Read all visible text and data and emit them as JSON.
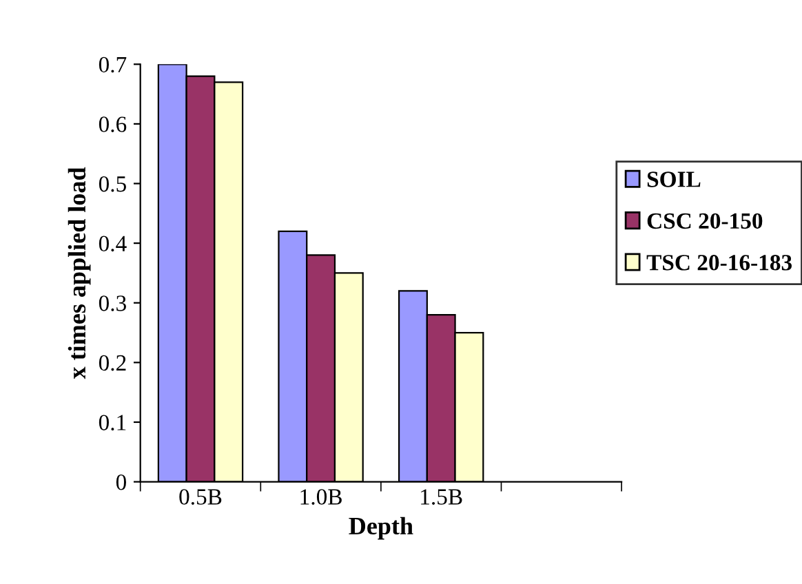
{
  "chart_data": {
    "type": "bar",
    "xlabel": "Depth",
    "ylabel": "x times applied load",
    "categories": [
      "0.5B",
      "1.0B",
      "1.5B",
      null
    ],
    "series": [
      {
        "name": "SOIL",
        "color": "#9999ff",
        "values": [
          0.7,
          0.42,
          0.32,
          null
        ]
      },
      {
        "name": "CSC 20-150",
        "color": "#993366",
        "values": [
          0.68,
          0.38,
          0.28,
          null
        ]
      },
      {
        "name": "TSC 20-16-183",
        "color": "#ffffcc",
        "values": [
          0.67,
          0.35,
          0.25,
          null
        ]
      }
    ],
    "ylim": [
      0,
      0.7
    ],
    "yticks": [
      0,
      0.1,
      0.2,
      0.3,
      0.4,
      0.5,
      0.6,
      0.7
    ],
    "grid": false,
    "legend": "right"
  }
}
